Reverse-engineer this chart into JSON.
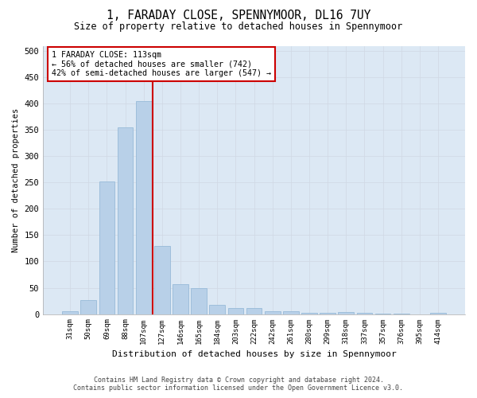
{
  "title": "1, FARADAY CLOSE, SPENNYMOOR, DL16 7UY",
  "subtitle": "Size of property relative to detached houses in Spennymoor",
  "xlabel": "Distribution of detached houses by size in Spennymoor",
  "ylabel": "Number of detached properties",
  "categories": [
    "31sqm",
    "50sqm",
    "69sqm",
    "88sqm",
    "107sqm",
    "127sqm",
    "146sqm",
    "165sqm",
    "184sqm",
    "203sqm",
    "222sqm",
    "242sqm",
    "261sqm",
    "280sqm",
    "299sqm",
    "318sqm",
    "337sqm",
    "357sqm",
    "376sqm",
    "395sqm",
    "414sqm"
  ],
  "values": [
    5,
    26,
    252,
    355,
    405,
    130,
    57,
    49,
    18,
    12,
    12,
    5,
    5,
    3,
    3,
    4,
    2,
    1,
    1,
    0,
    2
  ],
  "bar_color": "#b8d0e8",
  "bar_edge_color": "#8eb4d4",
  "reference_line_x": 4.5,
  "annotation_title": "1 FARADAY CLOSE: 113sqm",
  "annotation_line1": "← 56% of detached houses are smaller (742)",
  "annotation_line2": "42% of semi-detached houses are larger (547) →",
  "ylim": [
    0,
    510
  ],
  "yticks": [
    0,
    50,
    100,
    150,
    200,
    250,
    300,
    350,
    400,
    450,
    500
  ],
  "grid_color": "#d0d8e4",
  "bg_color": "#dce8f4",
  "fig_bg_color": "#ffffff",
  "footer1": "Contains HM Land Registry data © Crown copyright and database right 2024.",
  "footer2": "Contains public sector information licensed under the Open Government Licence v3.0."
}
